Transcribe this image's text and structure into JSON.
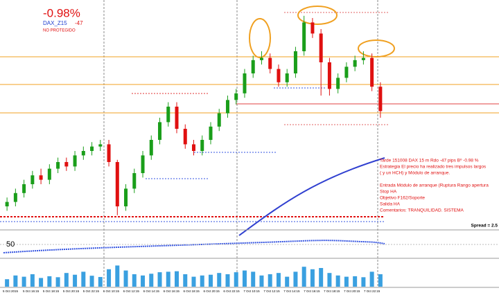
{
  "chart_data": {
    "type": "candlestick",
    "annotations": {
      "result": "-0.98%",
      "symbol": "DAX_Z15",
      "pips": "-47",
      "status": "NO PROTEGIDO",
      "spread": "Spread = 2.5",
      "notes": [
        "Tarde 151008 DAX 15 m  Rdo -47 pips Bº -0.98 %",
        "Estrategia El precio ha realizado tres impulsos largos",
        "( y un HCH) y Módulo de arranque.",
        "Entrada Módulo de arranque (Ruptura Rango apertura",
        "Stop HA",
        "Objetivo F162/Soporte",
        "Salida HA",
        "Comentarios: TRANQUILIDAD. SISTEMA"
      ]
    },
    "open": [
      10,
      12,
      16,
      20,
      24,
      22,
      27,
      30,
      28,
      33,
      35,
      37,
      38,
      30,
      10,
      18,
      25,
      33,
      40,
      48,
      55,
      45,
      38,
      35,
      40,
      46,
      52,
      58,
      61,
      70,
      76,
      77,
      72,
      66,
      70,
      80,
      93,
      88,
      75,
      63,
      68,
      73,
      76,
      77,
      64
    ],
    "high": [
      14,
      18,
      22,
      26,
      27,
      29,
      32,
      32,
      35,
      37,
      39,
      40,
      40,
      31,
      20,
      27,
      35,
      42,
      50,
      57,
      57,
      47,
      40,
      42,
      48,
      54,
      60,
      63,
      72,
      78,
      80,
      79,
      74,
      72,
      82,
      96,
      95,
      90,
      77,
      70,
      75,
      78,
      80,
      79,
      66
    ],
    "low": [
      8,
      10,
      14,
      18,
      20,
      20,
      25,
      26,
      26,
      31,
      33,
      35,
      28,
      6,
      8,
      16,
      23,
      31,
      38,
      46,
      43,
      36,
      33,
      33,
      38,
      44,
      50,
      56,
      59,
      68,
      74,
      70,
      64,
      64,
      68,
      78,
      86,
      60,
      60,
      61,
      66,
      71,
      74,
      62,
      50
    ],
    "close": [
      12,
      16,
      20,
      24,
      22,
      27,
      30,
      28,
      33,
      35,
      37,
      38,
      30,
      10,
      18,
      25,
      33,
      40,
      48,
      55,
      45,
      38,
      35,
      40,
      46,
      52,
      58,
      61,
      70,
      76,
      77,
      72,
      66,
      70,
      80,
      93,
      88,
      75,
      63,
      68,
      73,
      76,
      77,
      64,
      53
    ],
    "volume": [
      30,
      45,
      40,
      50,
      35,
      42,
      38,
      55,
      48,
      60,
      44,
      39,
      70,
      85,
      65,
      50,
      45,
      52,
      58,
      60,
      62,
      50,
      40,
      45,
      48,
      55,
      50,
      58,
      65,
      60,
      45,
      50,
      55,
      40,
      60,
      80,
      70,
      75,
      55,
      45,
      40,
      42,
      38,
      60,
      50
    ],
    "bull_color": "#1a9e1a",
    "bear_color": "#e01010",
    "volume_color": "#3aa0e0",
    "ylim": [
      0,
      100
    ],
    "volume_ylim": [
      0,
      100
    ],
    "indicator_ylim": [
      0,
      100
    ],
    "indicator_yticks": [
      50
    ],
    "time_labels": [
      "5 Oct 2015",
      "5 Oct 16:15",
      "5 Oct 18:15",
      "5 Oct 20:15",
      "5 Oct 22:15",
      "6 Oct 10:15",
      "6 Oct 12:15",
      "6 Oct 14:15",
      "6 Oct 16:15",
      "6 Oct 18:15",
      "6 Oct 20:15",
      "6 Oct 22:15",
      "7 Oct 10:15",
      "7 Oct 12:15",
      "7 Oct 14:15",
      "7 Oct 16:15",
      "7 Oct 18:15",
      "7 Oct 20:15",
      "7 Oct 22:15"
    ]
  }
}
